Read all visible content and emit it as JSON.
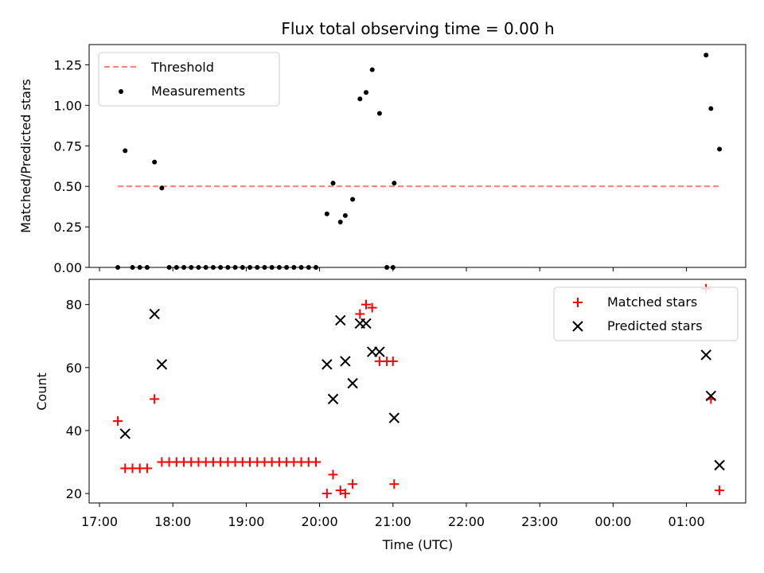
{
  "chart_data": [
    {
      "type": "scatter",
      "title": "Flux total observing time = 0.00 h",
      "xlabel": "",
      "ylabel": "Matched/Predicted stars",
      "ylim": [
        0,
        1.375
      ],
      "yticks": [
        0.0,
        0.25,
        0.5,
        0.75,
        1.0,
        1.25
      ],
      "ytick_labels": [
        "0.00",
        "0.25",
        "0.50",
        "0.75",
        "1.00",
        "1.25"
      ],
      "legend": "upper-left",
      "threshold": {
        "name": "Threshold",
        "value": 0.5,
        "from": "17:15",
        "to": "01:27",
        "color": "#ff7f7f"
      },
      "measurements": {
        "name": "Measurements",
        "color": "#000000",
        "points": [
          [
            "17:15",
            0.0
          ],
          [
            "17:21",
            0.72
          ],
          [
            "17:27",
            0.0
          ],
          [
            "17:33",
            0.0
          ],
          [
            "17:39",
            0.0
          ],
          [
            "17:45",
            0.65
          ],
          [
            "17:51",
            0.49
          ],
          [
            "17:57",
            0.0
          ],
          [
            "18:03",
            0.0
          ],
          [
            "18:09",
            0.0
          ],
          [
            "18:15",
            0.0
          ],
          [
            "18:21",
            0.0
          ],
          [
            "18:27",
            0.0
          ],
          [
            "18:33",
            0.0
          ],
          [
            "18:39",
            0.0
          ],
          [
            "18:45",
            0.0
          ],
          [
            "18:51",
            0.0
          ],
          [
            "18:57",
            0.0
          ],
          [
            "19:03",
            0.0
          ],
          [
            "19:09",
            0.0
          ],
          [
            "19:15",
            0.0
          ],
          [
            "19:21",
            0.0
          ],
          [
            "19:27",
            0.0
          ],
          [
            "19:33",
            0.0
          ],
          [
            "19:39",
            0.0
          ],
          [
            "19:45",
            0.0
          ],
          [
            "19:51",
            0.0
          ],
          [
            "19:57",
            0.0
          ],
          [
            "20:06",
            0.33
          ],
          [
            "20:11",
            0.52
          ],
          [
            "20:17",
            0.28
          ],
          [
            "20:21",
            0.32
          ],
          [
            "20:27",
            0.42
          ],
          [
            "20:33",
            1.04
          ],
          [
            "20:38",
            1.08
          ],
          [
            "20:43",
            1.22
          ],
          [
            "20:49",
            0.95
          ],
          [
            "20:55",
            0.0
          ],
          [
            "21:00",
            0.0
          ],
          [
            "21:01",
            0.52
          ],
          [
            "01:16",
            1.31
          ],
          [
            "01:20",
            0.98
          ],
          [
            "01:27",
            0.73
          ]
        ]
      }
    },
    {
      "type": "scatter",
      "title": "",
      "xlabel": "Time (UTC)",
      "ylabel": "Count",
      "ylim": [
        17,
        88
      ],
      "yticks": [
        20,
        40,
        60,
        80
      ],
      "xticks": [
        "17:00",
        "18:00",
        "19:00",
        "20:00",
        "21:00",
        "22:00",
        "23:00",
        "00:00",
        "01:00"
      ],
      "legend": "upper-right",
      "series": [
        {
          "name": "Matched stars",
          "marker": "plus",
          "color": "#ff0000",
          "points": [
            [
              "17:15",
              43
            ],
            [
              "17:21",
              28
            ],
            [
              "17:27",
              28
            ],
            [
              "17:33",
              28
            ],
            [
              "17:39",
              28
            ],
            [
              "17:45",
              50
            ],
            [
              "17:51",
              30
            ],
            [
              "17:57",
              30
            ],
            [
              "18:03",
              30
            ],
            [
              "18:09",
              30
            ],
            [
              "18:15",
              30
            ],
            [
              "18:21",
              30
            ],
            [
              "18:27",
              30
            ],
            [
              "18:33",
              30
            ],
            [
              "18:39",
              30
            ],
            [
              "18:45",
              30
            ],
            [
              "18:51",
              30
            ],
            [
              "18:57",
              30
            ],
            [
              "19:03",
              30
            ],
            [
              "19:09",
              30
            ],
            [
              "19:15",
              30
            ],
            [
              "19:21",
              30
            ],
            [
              "19:27",
              30
            ],
            [
              "19:33",
              30
            ],
            [
              "19:39",
              30
            ],
            [
              "19:45",
              30
            ],
            [
              "19:51",
              30
            ],
            [
              "19:57",
              30
            ],
            [
              "20:06",
              20
            ],
            [
              "20:11",
              26
            ],
            [
              "20:17",
              21
            ],
            [
              "20:21",
              20
            ],
            [
              "20:27",
              23
            ],
            [
              "20:33",
              77
            ],
            [
              "20:38",
              80
            ],
            [
              "20:43",
              79
            ],
            [
              "20:49",
              62
            ],
            [
              "20:55",
              62
            ],
            [
              "21:00",
              62
            ],
            [
              "21:01",
              23
            ],
            [
              "01:16",
              85
            ],
            [
              "01:20",
              50
            ],
            [
              "01:27",
              21
            ]
          ]
        },
        {
          "name": "Predicted stars",
          "marker": "x",
          "color": "#000000",
          "points": [
            [
              "17:21",
              39
            ],
            [
              "17:45",
              77
            ],
            [
              "17:51",
              61
            ],
            [
              "20:06",
              61
            ],
            [
              "20:11",
              50
            ],
            [
              "20:17",
              75
            ],
            [
              "20:21",
              62
            ],
            [
              "20:27",
              55
            ],
            [
              "20:33",
              74
            ],
            [
              "20:38",
              74
            ],
            [
              "20:43",
              65
            ],
            [
              "20:49",
              65
            ],
            [
              "21:01",
              44
            ],
            [
              "01:16",
              64
            ],
            [
              "01:20",
              51
            ],
            [
              "01:27",
              29
            ]
          ]
        }
      ]
    }
  ]
}
